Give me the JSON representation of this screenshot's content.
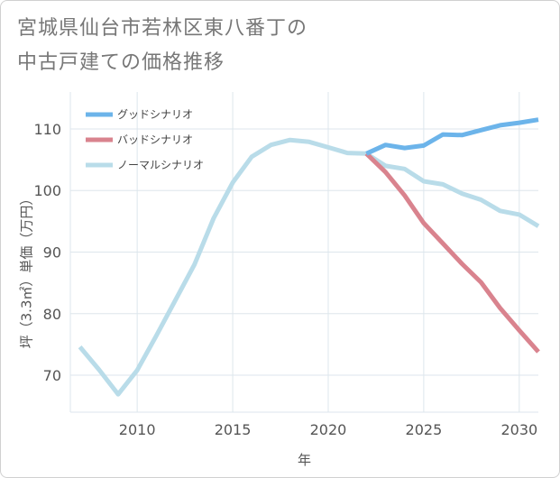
{
  "title_lines": [
    "宮城県仙台市若林区東八番丁の",
    "中古戸建ての価格推移"
  ],
  "chart_data": {
    "type": "line",
    "xlabel": "年",
    "ylabel": "坪（3.3㎡）単価（万円）",
    "xlim": [
      2006.5,
      2031
    ],
    "ylim": [
      64,
      116
    ],
    "xticks": [
      2010,
      2015,
      2020,
      2025,
      2030
    ],
    "yticks": [
      70,
      80,
      90,
      100,
      110
    ],
    "grid": true,
    "legend_position": "top-left",
    "series": [
      {
        "name": "グッドシナリオ",
        "color": "#6cb4ea",
        "points": [
          [
            2022,
            106.0
          ],
          [
            2023,
            107.4
          ],
          [
            2024,
            106.9
          ],
          [
            2025,
            107.3
          ],
          [
            2026,
            109.1
          ],
          [
            2027,
            109.0
          ],
          [
            2028,
            109.8
          ],
          [
            2029,
            110.6
          ],
          [
            2030,
            111.0
          ],
          [
            2031,
            111.5
          ]
        ]
      },
      {
        "name": "バッドシナリオ",
        "color": "#d9838e",
        "points": [
          [
            2022,
            106.0
          ],
          [
            2023,
            103.0
          ],
          [
            2024,
            99.2
          ],
          [
            2025,
            94.7
          ],
          [
            2026,
            91.4
          ],
          [
            2027,
            88.1
          ],
          [
            2028,
            85.1
          ],
          [
            2029,
            80.9
          ],
          [
            2030,
            77.3
          ],
          [
            2031,
            73.8
          ]
        ]
      },
      {
        "name": "ノーマルシナリオ",
        "color": "#b9dce9",
        "points": [
          [
            2007,
            74.6
          ],
          [
            2008,
            70.9
          ],
          [
            2009,
            66.9
          ],
          [
            2010,
            70.8
          ],
          [
            2011,
            76.4
          ],
          [
            2012,
            82.2
          ],
          [
            2013,
            88.0
          ],
          [
            2014,
            95.5
          ],
          [
            2015,
            101.3
          ],
          [
            2016,
            105.5
          ],
          [
            2017,
            107.4
          ],
          [
            2018,
            108.2
          ],
          [
            2019,
            107.9
          ],
          [
            2020,
            107.0
          ],
          [
            2021,
            106.1
          ],
          [
            2022,
            106.0
          ],
          [
            2023,
            104.0
          ],
          [
            2024,
            103.5
          ],
          [
            2025,
            101.5
          ],
          [
            2026,
            101.0
          ],
          [
            2027,
            99.5
          ],
          [
            2028,
            98.5
          ],
          [
            2029,
            96.7
          ],
          [
            2030,
            96.1
          ],
          [
            2031,
            94.2
          ]
        ]
      }
    ]
  }
}
